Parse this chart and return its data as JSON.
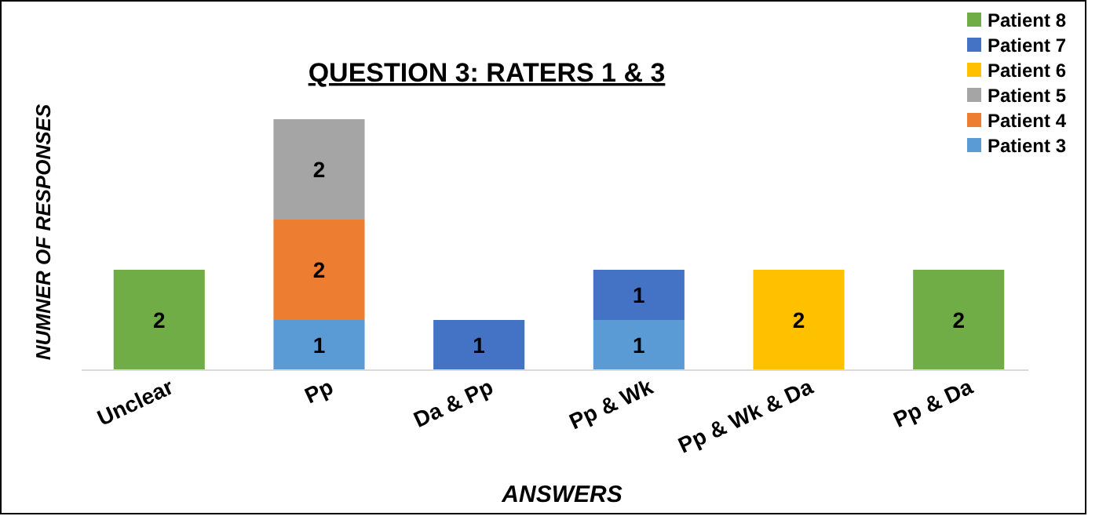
{
  "chart_data": {
    "type": "bar",
    "title": "QUESTION 3: RATERS 1 & 3",
    "xlabel": "ANSWERS",
    "ylabel": "NUMNER OF RESPONSES",
    "categories": [
      "Unclear",
      "Pp",
      "Da & Pp",
      "Pp & Wk",
      "Pp & Wk & Da",
      "Pp & Da"
    ],
    "stacked": true,
    "data_labels": true,
    "legend": "top right",
    "grid": false,
    "series": [
      {
        "name": "Patient 3",
        "color": "#5b9bd5",
        "values": [
          null,
          1,
          null,
          1,
          null,
          null
        ]
      },
      {
        "name": "Patient 4",
        "color": "#ed7d31",
        "values": [
          null,
          2,
          null,
          null,
          null,
          null
        ]
      },
      {
        "name": "Patient 5",
        "color": "#a5a5a5",
        "values": [
          null,
          2,
          null,
          null,
          null,
          null
        ]
      },
      {
        "name": "Patient 6",
        "color": "#ffc000",
        "values": [
          null,
          null,
          null,
          null,
          2,
          null
        ]
      },
      {
        "name": "Patient 7",
        "color": "#4472c4",
        "values": [
          null,
          null,
          1,
          1,
          null,
          null
        ]
      },
      {
        "name": "Patient 8",
        "color": "#70ad47",
        "values": [
          2,
          null,
          null,
          null,
          null,
          2
        ]
      }
    ]
  }
}
